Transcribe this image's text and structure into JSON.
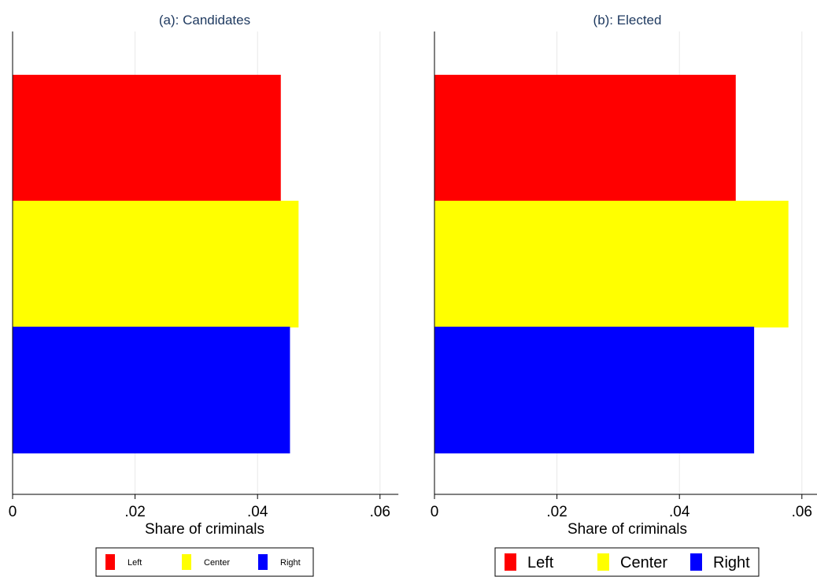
{
  "chart_data": [
    {
      "type": "bar",
      "orientation": "horizontal",
      "title": "(a): Candidates",
      "xlabel": "Share of criminals",
      "xlim": [
        0,
        0.063
      ],
      "xticks": [
        0,
        0.02,
        0.04,
        0.06
      ],
      "xtick_labels": [
        "0",
        ".02",
        ".04",
        ".06"
      ],
      "grid": "vertical",
      "series": [
        {
          "name": "Left",
          "value": 0.0438,
          "color": "#ff0000"
        },
        {
          "name": "Center",
          "value": 0.0467,
          "color": "#ffff00"
        },
        {
          "name": "Right",
          "value": 0.0453,
          "color": "#0000ff"
        }
      ],
      "legend_position": "bottom"
    },
    {
      "type": "bar",
      "orientation": "horizontal",
      "title": "(b): Elected",
      "xlabel": "Share of criminals",
      "xlim": [
        0,
        0.063
      ],
      "xticks": [
        0,
        0.02,
        0.04,
        0.06
      ],
      "xtick_labels": [
        "0",
        ".02",
        ".04",
        ".06"
      ],
      "grid": "vertical",
      "series": [
        {
          "name": "Left",
          "value": 0.0492,
          "color": "#ff0000"
        },
        {
          "name": "Center",
          "value": 0.0578,
          "color": "#ffff00"
        },
        {
          "name": "Right",
          "value": 0.0522,
          "color": "#0000ff"
        }
      ],
      "legend_position": "bottom"
    }
  ]
}
